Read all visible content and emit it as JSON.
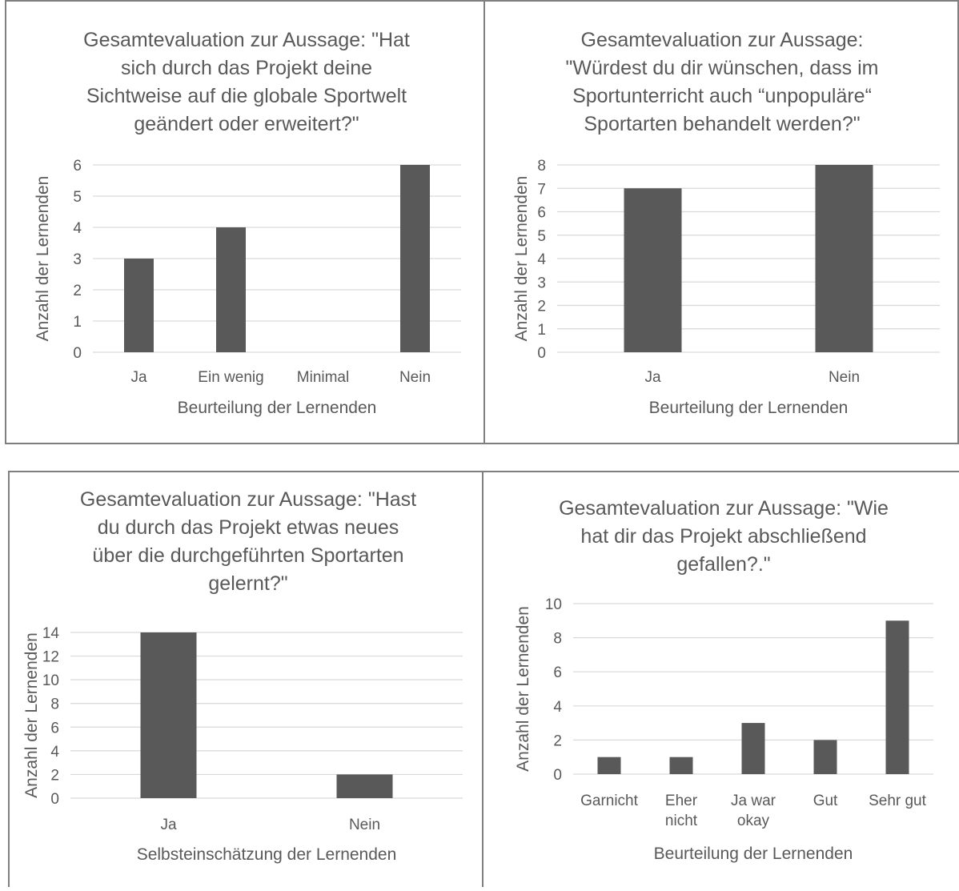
{
  "chart_data": [
    {
      "type": "bar",
      "title_lines": [
        "Gesamtevaluation zur Aussage: \"Hat",
        "sich durch das Projekt deine",
        "Sichtweise auf die globale Sportwelt",
        "geändert oder erweitert?\""
      ],
      "categories": [
        [
          "Ja"
        ],
        [
          "Ein wenig"
        ],
        [
          "Minimal"
        ],
        [
          "Nein"
        ]
      ],
      "values": [
        3,
        4,
        0,
        6
      ],
      "ylim": [
        0,
        6
      ],
      "yticks": [
        0,
        1,
        2,
        3,
        4,
        5,
        6
      ],
      "xlabel": "Beurteilung der Lernenden",
      "ylabel": "Anzahl  der Lernenden",
      "grid": true,
      "bar_color": "#595959"
    },
    {
      "type": "bar",
      "title_lines": [
        "Gesamtevaluation zur Aussage:",
        "\"Würdest du dir wünschen, dass im",
        "Sportunterricht auch “unpopuläre“",
        "Sportarten behandelt werden?\""
      ],
      "categories": [
        [
          "Ja"
        ],
        [
          "Nein"
        ]
      ],
      "values": [
        7,
        8
      ],
      "ylim": [
        0,
        8
      ],
      "yticks": [
        0,
        1,
        2,
        3,
        4,
        5,
        6,
        7,
        8
      ],
      "xlabel": "Beurteilung der Lernenden",
      "ylabel": "Anzahl  der Lernenden",
      "grid": true,
      "bar_color": "#595959"
    },
    {
      "type": "bar",
      "title_lines": [
        "Gesamtevaluation zur Aussage: \"Hast",
        "du durch das Projekt etwas neues",
        "über die durchgeführten Sportarten",
        "gelernt?\""
      ],
      "categories": [
        [
          "Ja"
        ],
        [
          "Nein"
        ]
      ],
      "values": [
        14,
        2
      ],
      "ylim": [
        0,
        14
      ],
      "yticks": [
        0,
        2,
        4,
        6,
        8,
        10,
        12,
        14
      ],
      "xlabel": "Selbsteinschätzung der Lernenden",
      "ylabel": "Anzahl  der Lernenden",
      "grid": true,
      "bar_color": "#595959"
    },
    {
      "type": "bar",
      "title_lines": [
        "Gesamtevaluation zur Aussage: \"Wie",
        "hat dir das Projekt abschließend",
        "gefallen?.\""
      ],
      "categories": [
        [
          "Garnicht"
        ],
        [
          "Eher",
          "nicht"
        ],
        [
          "Ja war",
          "okay"
        ],
        [
          "Gut"
        ],
        [
          "Sehr gut"
        ]
      ],
      "values": [
        1,
        1,
        3,
        2,
        9
      ],
      "ylim": [
        0,
        10
      ],
      "yticks": [
        0,
        2,
        4,
        6,
        8,
        10
      ],
      "xlabel": "Beurteilung der Lernenden",
      "ylabel": "Anzahl  der Lernenden",
      "grid": true,
      "bar_color": "#595959"
    }
  ]
}
